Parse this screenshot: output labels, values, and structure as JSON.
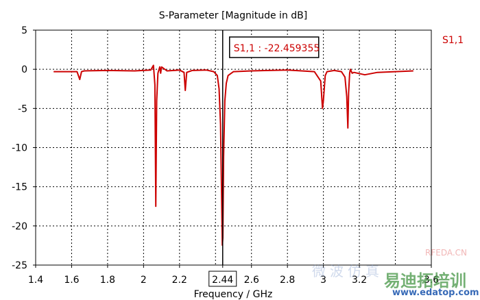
{
  "chart_data": {
    "type": "line",
    "title": "S-Parameter [Magnitude in dB]",
    "xlabel": "Frequency / GHz",
    "ylabel": "",
    "xlim": [
      1.4,
      3.6
    ],
    "ylim": [
      -25,
      5
    ],
    "xticks": [
      1.4,
      1.6,
      1.8,
      2,
      2.2,
      2.44,
      2.6,
      2.8,
      3,
      3.2,
      3.6
    ],
    "xtick_labels": [
      "1.4",
      "1.6",
      "1.8",
      "2",
      "2.2",
      "2.44",
      "2.6",
      "2.8",
      "3",
      "3.2",
      "3.6"
    ],
    "xgrid": [
      1.4,
      1.6,
      1.8,
      2.0,
      2.2,
      2.4,
      2.6,
      2.8,
      3.0,
      3.2,
      3.4,
      3.6
    ],
    "yticks": [
      5,
      0,
      -5,
      -10,
      -15,
      -20,
      -25
    ],
    "ytick_labels": [
      "5",
      "0",
      "-5",
      "-10",
      "-15",
      "-20",
      "-25"
    ],
    "grid": true,
    "legend_position": "top-right",
    "series": [
      {
        "name": "S1,1",
        "color": "#cc0000",
        "x": [
          1.5,
          1.6,
          1.63,
          1.645,
          1.655,
          1.67,
          1.8,
          1.95,
          2.04,
          2.055,
          2.063,
          2.068,
          2.073,
          2.08,
          2.09,
          2.095,
          2.1,
          2.13,
          2.2,
          2.225,
          2.232,
          2.24,
          2.27,
          2.35,
          2.39,
          2.41,
          2.42,
          2.428,
          2.433,
          2.438,
          2.441,
          2.445,
          2.452,
          2.46,
          2.47,
          2.5,
          2.6,
          2.8,
          2.95,
          2.985,
          2.995,
          3.0,
          3.01,
          3.02,
          3.06,
          3.1,
          3.12,
          3.13,
          3.136,
          3.14,
          3.146,
          3.15,
          3.16,
          3.17,
          3.23,
          3.3,
          3.4,
          3.5
        ],
        "y": [
          -0.3,
          -0.3,
          -0.3,
          -1.3,
          -0.3,
          -0.2,
          -0.15,
          -0.2,
          -0.1,
          0.5,
          -2.0,
          -17.5,
          -4.0,
          -0.5,
          0.3,
          -0.5,
          0.3,
          -0.2,
          -0.1,
          -0.4,
          -2.7,
          -0.4,
          -0.15,
          -0.1,
          -0.3,
          -0.8,
          -2.5,
          -7.0,
          -14.5,
          -22.459355,
          -21.5,
          -11.2,
          -4.0,
          -1.8,
          -0.8,
          -0.3,
          -0.2,
          -0.1,
          -0.3,
          -1.5,
          -5.0,
          -4.0,
          -0.8,
          -0.3,
          -0.15,
          -0.3,
          -1.0,
          -3.5,
          -7.5,
          -3.0,
          -0.5,
          0.0,
          -0.5,
          -0.4,
          -0.7,
          -0.4,
          -0.3,
          -0.2
        ]
      }
    ],
    "marker": {
      "x": 2.44,
      "label": "S1,1 : -22.459355",
      "x_label": "2.44"
    }
  },
  "watermark": {
    "left_text": "微波仿真",
    "domain": "RFEDA.CN",
    "brand": "易迪拓培训",
    "url": "www.edatop.com"
  }
}
